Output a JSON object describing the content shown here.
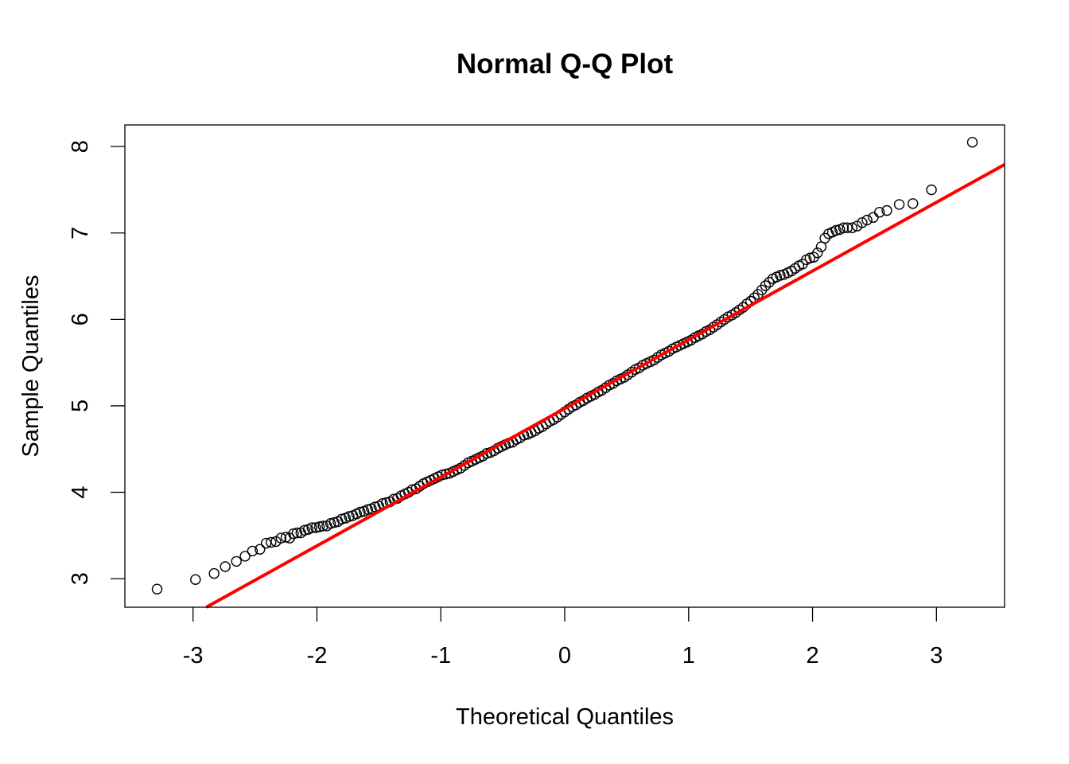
{
  "chart_data": {
    "type": "scatter",
    "title": "Normal Q-Q Plot",
    "xlabel": "Theoretical Quantiles",
    "ylabel": "Sample Quantiles",
    "xlim": [
      -3.55,
      3.55
    ],
    "ylim": [
      2.67,
      8.25
    ],
    "x_ticks": [
      -3,
      -2,
      -1,
      0,
      1,
      2,
      3
    ],
    "y_ticks": [
      3,
      4,
      5,
      6,
      7,
      8
    ],
    "x_tick_labels": [
      "-3",
      "-2",
      "-1",
      "0",
      "1",
      "2",
      "3"
    ],
    "y_tick_labels": [
      "3",
      "4",
      "5",
      "6",
      "7",
      "8"
    ],
    "grid": false,
    "legend": "none",
    "reference_line": {
      "intercept": 4.97,
      "slope": 0.795,
      "color": "#ff0000"
    },
    "point_color": "#000000",
    "points": [
      [
        -3.29,
        2.88
      ],
      [
        -2.98,
        2.99
      ],
      [
        -2.83,
        3.06
      ],
      [
        -2.74,
        3.14
      ],
      [
        -2.65,
        3.2
      ],
      [
        -2.58,
        3.26
      ],
      [
        -2.52,
        3.32
      ],
      [
        -2.46,
        3.34
      ],
      [
        -2.41,
        3.41
      ],
      [
        -2.37,
        3.42
      ],
      [
        -2.33,
        3.43
      ],
      [
        -2.29,
        3.47
      ],
      [
        -2.25,
        3.48
      ],
      [
        -2.22,
        3.47
      ],
      [
        -2.19,
        3.52
      ],
      [
        -2.16,
        3.53
      ],
      [
        -2.13,
        3.53
      ],
      [
        -2.1,
        3.56
      ],
      [
        -2.07,
        3.57
      ],
      [
        -2.04,
        3.59
      ],
      [
        -2.01,
        3.59
      ],
      [
        -1.98,
        3.6
      ],
      [
        -1.95,
        3.61
      ],
      [
        -1.92,
        3.61
      ],
      [
        -1.89,
        3.64
      ],
      [
        -1.86,
        3.65
      ],
      [
        -1.83,
        3.66
      ],
      [
        -1.8,
        3.69
      ],
      [
        -1.77,
        3.7
      ],
      [
        -1.74,
        3.72
      ],
      [
        -1.71,
        3.73
      ],
      [
        -1.68,
        3.75
      ],
      [
        -1.65,
        3.77
      ],
      [
        -1.62,
        3.78
      ],
      [
        -1.59,
        3.8
      ],
      [
        -1.56,
        3.81
      ],
      [
        -1.53,
        3.83
      ],
      [
        -1.5,
        3.84
      ],
      [
        -1.47,
        3.87
      ],
      [
        -1.44,
        3.88
      ],
      [
        -1.41,
        3.89
      ],
      [
        -1.38,
        3.92
      ],
      [
        -1.35,
        3.93
      ],
      [
        -1.32,
        3.96
      ],
      [
        -1.29,
        3.98
      ],
      [
        -1.26,
        4.0
      ],
      [
        -1.23,
        4.03
      ],
      [
        -1.2,
        4.04
      ],
      [
        -1.17,
        4.07
      ],
      [
        -1.14,
        4.1
      ],
      [
        -1.11,
        4.12
      ],
      [
        -1.08,
        4.14
      ],
      [
        -1.05,
        4.16
      ],
      [
        -1.02,
        4.18
      ],
      [
        -0.99,
        4.2
      ],
      [
        -0.96,
        4.21
      ],
      [
        -0.93,
        4.22
      ],
      [
        -0.9,
        4.24
      ],
      [
        -0.87,
        4.26
      ],
      [
        -0.84,
        4.28
      ],
      [
        -0.81,
        4.31
      ],
      [
        -0.78,
        4.34
      ],
      [
        -0.75,
        4.36
      ],
      [
        -0.72,
        4.38
      ],
      [
        -0.69,
        4.4
      ],
      [
        -0.66,
        4.42
      ],
      [
        -0.63,
        4.45
      ],
      [
        -0.6,
        4.46
      ],
      [
        -0.57,
        4.48
      ],
      [
        -0.54,
        4.51
      ],
      [
        -0.51,
        4.53
      ],
      [
        -0.48,
        4.55
      ],
      [
        -0.45,
        4.57
      ],
      [
        -0.42,
        4.58
      ],
      [
        -0.39,
        4.61
      ],
      [
        -0.36,
        4.63
      ],
      [
        -0.33,
        4.66
      ],
      [
        -0.3,
        4.67
      ],
      [
        -0.27,
        4.69
      ],
      [
        -0.24,
        4.71
      ],
      [
        -0.21,
        4.74
      ],
      [
        -0.18,
        4.76
      ],
      [
        -0.15,
        4.79
      ],
      [
        -0.12,
        4.82
      ],
      [
        -0.09,
        4.84
      ],
      [
        -0.06,
        4.87
      ],
      [
        -0.03,
        4.9
      ],
      [
        0.0,
        4.93
      ],
      [
        0.03,
        4.96
      ],
      [
        0.06,
        4.99
      ],
      [
        0.09,
        5.01
      ],
      [
        0.12,
        5.04
      ],
      [
        0.15,
        5.06
      ],
      [
        0.18,
        5.09
      ],
      [
        0.21,
        5.11
      ],
      [
        0.24,
        5.13
      ],
      [
        0.27,
        5.16
      ],
      [
        0.3,
        5.18
      ],
      [
        0.33,
        5.21
      ],
      [
        0.36,
        5.24
      ],
      [
        0.39,
        5.26
      ],
      [
        0.42,
        5.29
      ],
      [
        0.45,
        5.31
      ],
      [
        0.48,
        5.33
      ],
      [
        0.51,
        5.36
      ],
      [
        0.54,
        5.39
      ],
      [
        0.57,
        5.42
      ],
      [
        0.6,
        5.44
      ],
      [
        0.63,
        5.47
      ],
      [
        0.66,
        5.49
      ],
      [
        0.69,
        5.51
      ],
      [
        0.72,
        5.53
      ],
      [
        0.75,
        5.56
      ],
      [
        0.78,
        5.59
      ],
      [
        0.81,
        5.61
      ],
      [
        0.84,
        5.63
      ],
      [
        0.87,
        5.66
      ],
      [
        0.9,
        5.68
      ],
      [
        0.93,
        5.7
      ],
      [
        0.96,
        5.72
      ],
      [
        0.99,
        5.74
      ],
      [
        1.02,
        5.76
      ],
      [
        1.05,
        5.79
      ],
      [
        1.08,
        5.81
      ],
      [
        1.11,
        5.83
      ],
      [
        1.14,
        5.86
      ],
      [
        1.17,
        5.88
      ],
      [
        1.2,
        5.91
      ],
      [
        1.23,
        5.94
      ],
      [
        1.26,
        5.97
      ],
      [
        1.29,
        6.0
      ],
      [
        1.32,
        6.03
      ],
      [
        1.35,
        6.05
      ],
      [
        1.38,
        6.08
      ],
      [
        1.41,
        6.11
      ],
      [
        1.44,
        6.14
      ],
      [
        1.47,
        6.18
      ],
      [
        1.5,
        6.21
      ],
      [
        1.53,
        6.25
      ],
      [
        1.56,
        6.29
      ],
      [
        1.59,
        6.34
      ],
      [
        1.62,
        6.39
      ],
      [
        1.65,
        6.43
      ],
      [
        1.68,
        6.47
      ],
      [
        1.71,
        6.49
      ],
      [
        1.74,
        6.51
      ],
      [
        1.77,
        6.52
      ],
      [
        1.8,
        6.54
      ],
      [
        1.83,
        6.56
      ],
      [
        1.86,
        6.59
      ],
      [
        1.89,
        6.62
      ],
      [
        1.92,
        6.64
      ],
      [
        1.95,
        6.69
      ],
      [
        1.98,
        6.71
      ],
      [
        2.01,
        6.72
      ],
      [
        2.04,
        6.77
      ],
      [
        2.07,
        6.84
      ],
      [
        2.1,
        6.94
      ],
      [
        2.13,
        6.99
      ],
      [
        2.16,
        7.01
      ],
      [
        2.19,
        7.03
      ],
      [
        2.22,
        7.04
      ],
      [
        2.25,
        7.06
      ],
      [
        2.28,
        7.06
      ],
      [
        2.32,
        7.06
      ],
      [
        2.36,
        7.08
      ],
      [
        2.4,
        7.12
      ],
      [
        2.44,
        7.15
      ],
      [
        2.49,
        7.18
      ],
      [
        2.54,
        7.24
      ],
      [
        2.6,
        7.26
      ],
      [
        2.7,
        7.33
      ],
      [
        2.81,
        7.34
      ],
      [
        2.96,
        7.5
      ],
      [
        3.29,
        8.05
      ]
    ]
  }
}
